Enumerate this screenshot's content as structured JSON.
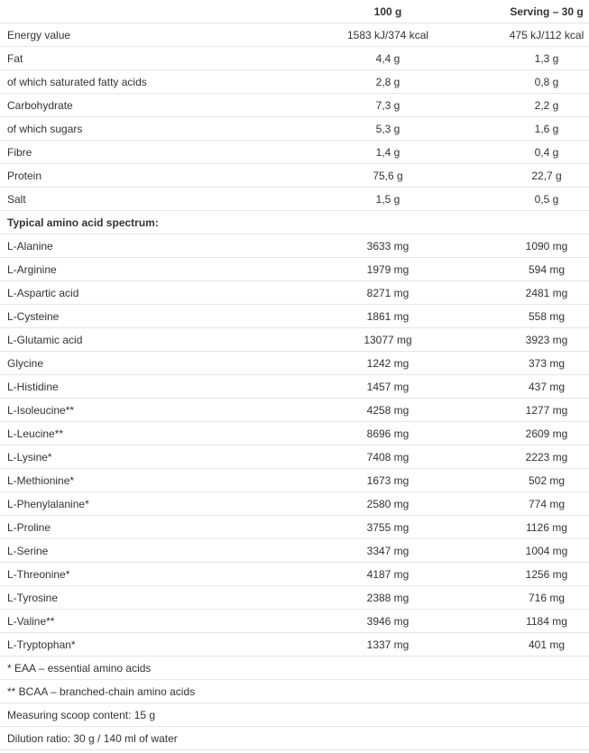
{
  "header": {
    "col_label": "",
    "col_100g": "100 g",
    "col_serving": "Serving – 30 g"
  },
  "nutrition": [
    {
      "name": "Energy value",
      "per100": "1583 kJ/374 kcal",
      "serving": "475 kJ/112 kcal"
    },
    {
      "name": "Fat",
      "per100": "4,4 g",
      "serving": "1,3 g"
    },
    {
      "name": "of which saturated fatty acids",
      "per100": "2,8 g",
      "serving": "0,8 g"
    },
    {
      "name": "Carbohydrate",
      "per100": "7,3 g",
      "serving": "2,2 g"
    },
    {
      "name": "of which sugars",
      "per100": "5,3 g",
      "serving": "1,6 g"
    },
    {
      "name": "Fibre",
      "per100": "1,4 g",
      "serving": "0,4 g"
    },
    {
      "name": "Protein",
      "per100": "75,6 g",
      "serving": "22,7 g"
    },
    {
      "name": "Salt",
      "per100": "1,5 g",
      "serving": "0,5 g"
    }
  ],
  "amino_heading": "Typical amino acid spectrum:",
  "amino": [
    {
      "name": "L-Alanine",
      "per100": "3633 mg",
      "serving": "1090 mg"
    },
    {
      "name": "L-Arginine",
      "per100": "1979 mg",
      "serving": "594 mg"
    },
    {
      "name": "L-Aspartic acid",
      "per100": "8271 mg",
      "serving": "2481 mg"
    },
    {
      "name": "L-Cysteine",
      "per100": "1861 mg",
      "serving": "558 mg"
    },
    {
      "name": "L-Glutamic acid",
      "per100": "13077 mg",
      "serving": "3923 mg"
    },
    {
      "name": "Glycine",
      "per100": "1242 mg",
      "serving": "373 mg"
    },
    {
      "name": "L-Histidine",
      "per100": "1457 mg",
      "serving": "437 mg"
    },
    {
      "name": "L-Isoleucine**",
      "per100": "4258 mg",
      "serving": "1277 mg"
    },
    {
      "name": "L-Leucine**",
      "per100": "8696 mg",
      "serving": "2609 mg"
    },
    {
      "name": "L-Lysine*",
      "per100": "7408 mg",
      "serving": "2223 mg"
    },
    {
      "name": "L-Methionine*",
      "per100": "1673 mg",
      "serving": "502 mg"
    },
    {
      "name": "L-Phenylalanine*",
      "per100": "2580 mg",
      "serving": "774 mg"
    },
    {
      "name": "L-Proline",
      "per100": "3755 mg",
      "serving": "1126 mg"
    },
    {
      "name": "L-Serine",
      "per100": "3347 mg",
      "serving": "1004 mg"
    },
    {
      "name": "L-Threonine*",
      "per100": "4187 mg",
      "serving": "1256 mg"
    },
    {
      "name": "L-Tyrosine",
      "per100": "2388 mg",
      "serving": "716 mg"
    },
    {
      "name": "L-Valine**",
      "per100": "3946 mg",
      "serving": "1184 mg"
    },
    {
      "name": "L-Tryptophan*",
      "per100": "1337 mg",
      "serving": "401 mg"
    }
  ],
  "notes": [
    "* EAA – essential amino acids",
    "** BCAA – branched-chain amino acids",
    "Measuring scoop content: 15 g",
    "Dilution ratio: 30 g / 140 ml of water"
  ]
}
